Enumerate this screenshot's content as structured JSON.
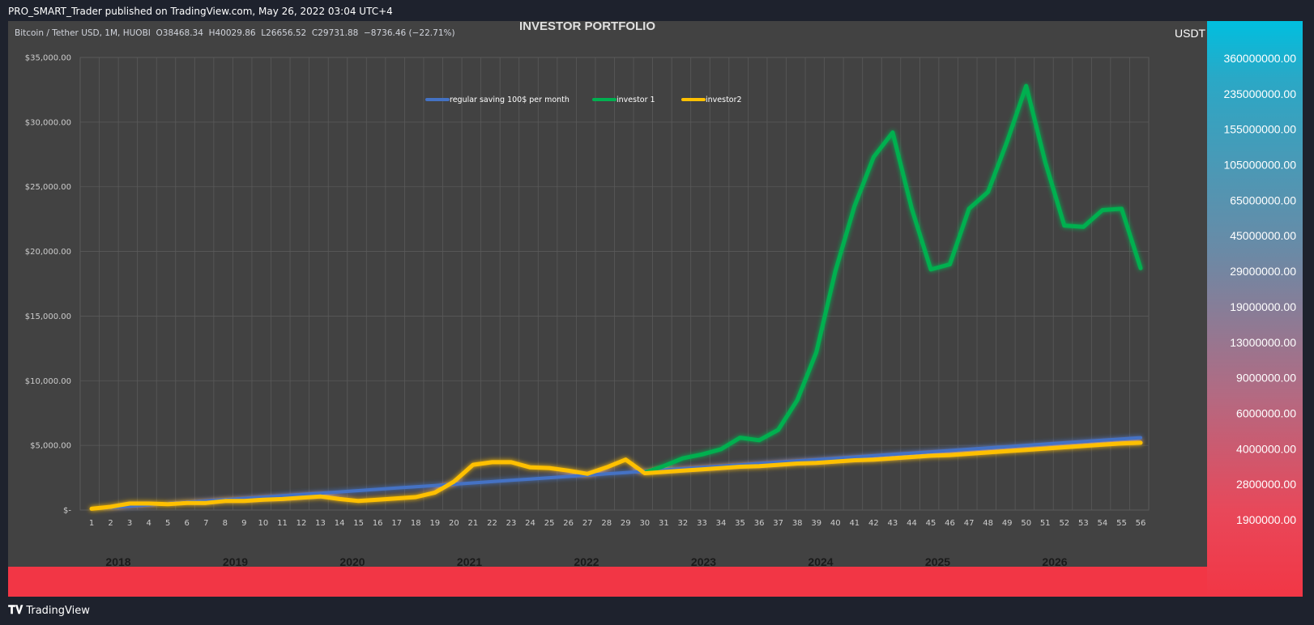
{
  "header": {
    "publish_line": "PRO_SMART_Trader published on TradingView.com, May 26, 2022 03:04 UTC+4",
    "symbol_line": "Bitcoin / Tether USD, 1M, HUOBI  O38468.34  H40029.86  L26656.52  C29731.88  −8736.46 (−22.71%)"
  },
  "footer": {
    "logo_text": "TradingView"
  },
  "colors": {
    "series_blue": "#4472c4",
    "series_green": "#00b050",
    "series_yellow": "#ffc000",
    "year_band": "#f23645"
  },
  "chart_data": {
    "type": "line",
    "title": "INVESTOR PORTFOLIO",
    "legend_position": "top-center",
    "grid": true,
    "x": [
      1,
      2,
      3,
      4,
      5,
      6,
      7,
      8,
      9,
      10,
      11,
      12,
      13,
      14,
      15,
      16,
      17,
      18,
      19,
      20,
      21,
      22,
      23,
      24,
      25,
      26,
      27,
      28,
      29,
      30,
      31,
      32,
      33,
      34,
      35,
      36,
      37,
      38,
      39,
      40,
      41,
      42,
      43,
      44,
      45,
      46,
      47,
      48,
      49,
      50,
      51,
      52,
      53,
      54,
      55,
      56
    ],
    "x_tick_labels": [
      "1",
      "2",
      "3",
      "4",
      "5",
      "6",
      "7",
      "8",
      "9",
      "10",
      "11",
      "12",
      "13",
      "14",
      "15",
      "16",
      "17",
      "18",
      "19",
      "20",
      "21",
      "22",
      "23",
      "24",
      "25",
      "26",
      "27",
      "28",
      "29",
      "30",
      "31",
      "32",
      "33",
      "34",
      "35",
      "36",
      "37",
      "38",
      "39",
      "40",
      "41",
      "42",
      "43",
      "44",
      "45",
      "46",
      "47",
      "48",
      "49",
      "50",
      "51",
      "52",
      "53",
      "54",
      "55",
      "56"
    ],
    "ylim": [
      0,
      35000
    ],
    "y_tick_labels": [
      "$35,000.00",
      "$30,000.00",
      "$25,000.00",
      "$20,000.00",
      "$15,000.00",
      "$10,000.00",
      "$5,000.00",
      "$-"
    ],
    "series": [
      {
        "name": "regular saving 100$ per month",
        "color": "#4472c4",
        "values": [
          100,
          200,
          300,
          400,
          500,
          600,
          700,
          800,
          900,
          1000,
          1100,
          1200,
          1300,
          1400,
          1500,
          1600,
          1700,
          1800,
          1900,
          2000,
          2100,
          2200,
          2300,
          2400,
          2500,
          2600,
          2700,
          2800,
          2900,
          3000,
          3100,
          3200,
          3300,
          3400,
          3500,
          3600,
          3700,
          3800,
          3900,
          4000,
          4100,
          4200,
          4300,
          4400,
          4500,
          4600,
          4700,
          4800,
          4900,
          5000,
          5100,
          5200,
          5300,
          5400,
          5500,
          5600
        ]
      },
      {
        "name": "investor 1",
        "color": "#00b050",
        "values": [
          null,
          null,
          null,
          null,
          null,
          null,
          null,
          null,
          null,
          null,
          null,
          null,
          null,
          null,
          null,
          null,
          null,
          null,
          null,
          null,
          null,
          null,
          null,
          null,
          null,
          null,
          null,
          null,
          null,
          2900,
          3400,
          4000,
          4300,
          4700,
          5600,
          5400,
          6200,
          8500,
          12200,
          18500,
          23500,
          27300,
          29200,
          23300,
          18600,
          19000,
          23300,
          24600,
          28500,
          32800,
          26900,
          22000,
          21900,
          23200,
          23300,
          18700
        ]
      },
      {
        "name": "investor2",
        "color": "#ffc000",
        "values": [
          100,
          250,
          500,
          500,
          450,
          550,
          550,
          700,
          700,
          800,
          850,
          950,
          1050,
          850,
          700,
          800,
          900,
          1000,
          1350,
          2200,
          3500,
          3700,
          3700,
          3300,
          3250,
          3050,
          2800,
          3300,
          3900,
          2850,
          2950,
          3050,
          3150,
          3250,
          3350,
          3400,
          3500,
          3600,
          3650,
          3750,
          3850,
          3900,
          4000,
          4100,
          4200,
          4250,
          4350,
          4450,
          4550,
          4650,
          4750,
          4850,
          4950,
          5050,
          5150,
          5200
        ]
      }
    ],
    "right_axis": {
      "title": "USDT",
      "labels": [
        "360000000.00",
        "235000000.00",
        "155000000.00",
        "105000000.00",
        "65000000.00",
        "45000000.00",
        "29000000.00",
        "19000000.00",
        "13000000.00",
        "9000000.00",
        "6000000.00",
        "4000000.00",
        "2800000.00",
        "1900000.00"
      ]
    },
    "years": [
      "2018",
      "2019",
      "2020",
      "2021",
      "2022",
      "2023",
      "2024",
      "2025",
      "2026"
    ]
  }
}
